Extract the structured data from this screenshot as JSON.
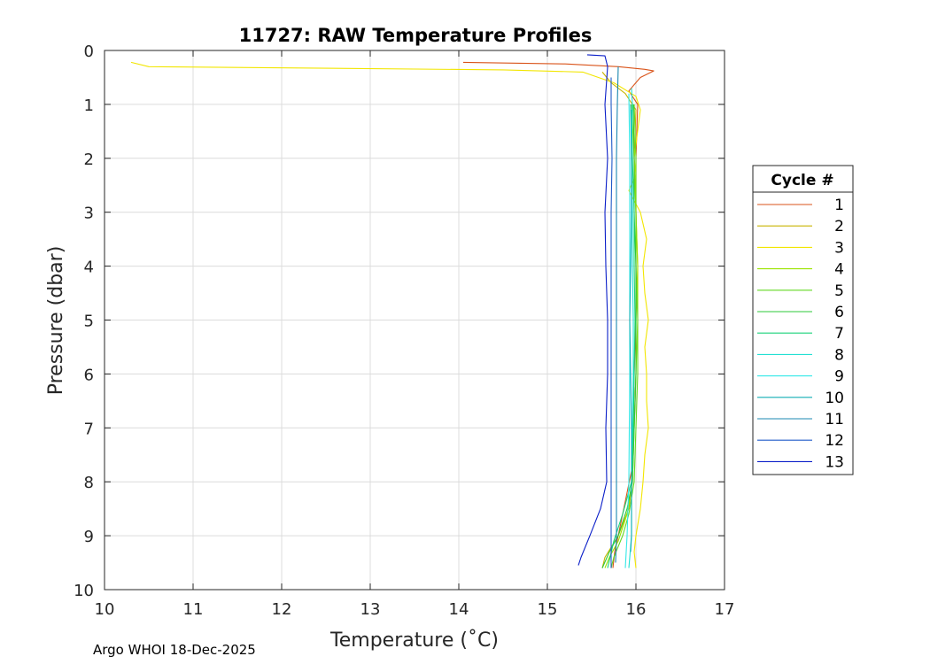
{
  "chart_data": {
    "type": "line",
    "title": "11727: RAW Temperature Profiles",
    "xlabel": "Temperature (˚C)",
    "ylabel": "Pressure (dbar)",
    "xlim": [
      10,
      17
    ],
    "ylim": [
      0,
      10
    ],
    "y_reversed": true,
    "grid": true,
    "xticks": [
      "10",
      "11",
      "12",
      "13",
      "14",
      "15",
      "16",
      "17"
    ],
    "yticks": [
      "0",
      "1",
      "2",
      "3",
      "4",
      "5",
      "6",
      "7",
      "8",
      "9",
      "10"
    ],
    "legend": {
      "title": "Cycle #",
      "placement": "right"
    },
    "series": [
      {
        "name": "1",
        "color": "#d95319",
        "points": [
          [
            14.05,
            0.22
          ],
          [
            15.2,
            0.25
          ],
          [
            15.8,
            0.3
          ],
          [
            16.1,
            0.35
          ],
          [
            16.2,
            0.38
          ],
          [
            16.05,
            0.5
          ],
          [
            15.92,
            0.75
          ],
          [
            16.02,
            1.0
          ],
          [
            16.0,
            2.0
          ],
          [
            16.0,
            3.0
          ],
          [
            16.0,
            4.0
          ],
          [
            16.0,
            5.0
          ],
          [
            15.98,
            6.0
          ],
          [
            15.97,
            7.0
          ],
          [
            15.95,
            7.8
          ],
          [
            15.9,
            8.2
          ],
          [
            15.85,
            8.6
          ],
          [
            15.8,
            9.0
          ],
          [
            15.76,
            9.3
          ],
          [
            15.74,
            9.6
          ]
        ]
      },
      {
        "name": "2",
        "color": "#c8b400",
        "points": [
          [
            15.62,
            0.4
          ],
          [
            15.72,
            0.6
          ],
          [
            15.88,
            0.8
          ],
          [
            16.0,
            1.1
          ],
          [
            15.98,
            2.0
          ],
          [
            16.0,
            3.0
          ],
          [
            16.02,
            4.0
          ],
          [
            16.0,
            5.0
          ],
          [
            16.0,
            6.0
          ],
          [
            15.98,
            7.0
          ],
          [
            15.96,
            8.0
          ],
          [
            15.92,
            8.5
          ],
          [
            15.8,
            9.0
          ],
          [
            15.65,
            9.4
          ],
          [
            15.62,
            9.6
          ]
        ]
      },
      {
        "name": "3",
        "color": "#f2e600",
        "points": [
          [
            10.3,
            0.22
          ],
          [
            10.5,
            0.3
          ],
          [
            12.5,
            0.33
          ],
          [
            14.5,
            0.36
          ],
          [
            15.4,
            0.4
          ],
          [
            15.75,
            0.6
          ],
          [
            16.0,
            0.85
          ],
          [
            16.05,
            1.1
          ],
          [
            15.98,
            2.0
          ],
          [
            16.0,
            2.3
          ],
          [
            15.92,
            2.6
          ],
          [
            16.05,
            3.0
          ],
          [
            16.12,
            3.5
          ],
          [
            16.08,
            4.0
          ],
          [
            16.1,
            4.5
          ],
          [
            16.14,
            5.0
          ],
          [
            16.1,
            5.5
          ],
          [
            16.12,
            6.0
          ],
          [
            16.12,
            6.5
          ],
          [
            16.14,
            7.0
          ],
          [
            16.1,
            7.5
          ],
          [
            16.08,
            8.0
          ],
          [
            16.05,
            8.5
          ],
          [
            16.0,
            9.0
          ],
          [
            15.98,
            9.3
          ],
          [
            16.0,
            9.6
          ]
        ]
      },
      {
        "name": "4",
        "color": "#9be400",
        "points": [
          [
            15.95,
            1.0
          ],
          [
            15.98,
            2.0
          ],
          [
            16.0,
            3.0
          ],
          [
            16.02,
            4.0
          ],
          [
            16.02,
            5.0
          ],
          [
            16.0,
            6.0
          ],
          [
            15.98,
            7.0
          ],
          [
            15.96,
            8.0
          ],
          [
            15.9,
            8.6
          ],
          [
            15.8,
            9.1
          ],
          [
            15.7,
            9.4
          ],
          [
            15.65,
            9.6
          ]
        ]
      },
      {
        "name": "5",
        "color": "#62d820",
        "points": [
          [
            15.98,
            1.0
          ],
          [
            16.0,
            2.0
          ],
          [
            16.0,
            3.0
          ],
          [
            16.0,
            4.0
          ],
          [
            16.02,
            5.0
          ],
          [
            16.02,
            6.0
          ],
          [
            16.0,
            7.0
          ],
          [
            15.98,
            8.0
          ],
          [
            15.92,
            8.6
          ],
          [
            15.85,
            9.0
          ],
          [
            15.75,
            9.4
          ],
          [
            15.72,
            9.6
          ]
        ]
      },
      {
        "name": "6",
        "color": "#2ec838",
        "points": [
          [
            15.97,
            1.0
          ],
          [
            15.98,
            2.0
          ],
          [
            15.98,
            3.0
          ],
          [
            16.0,
            4.0
          ],
          [
            16.0,
            5.0
          ],
          [
            16.0,
            6.0
          ],
          [
            15.98,
            7.0
          ],
          [
            15.96,
            8.0
          ],
          [
            15.9,
            8.5
          ],
          [
            15.8,
            9.0
          ],
          [
            15.7,
            9.3
          ],
          [
            15.62,
            9.6
          ]
        ]
      },
      {
        "name": "7",
        "color": "#19d27a",
        "points": [
          [
            15.95,
            1.1
          ],
          [
            15.96,
            2.0
          ],
          [
            15.98,
            3.0
          ],
          [
            15.98,
            4.0
          ],
          [
            15.99,
            5.0
          ],
          [
            15.98,
            6.0
          ],
          [
            15.97,
            7.0
          ],
          [
            15.95,
            8.0
          ],
          [
            15.85,
            8.6
          ],
          [
            15.75,
            9.1
          ],
          [
            15.68,
            9.6
          ]
        ]
      },
      {
        "name": "8",
        "color": "#22e0d2",
        "points": [
          [
            15.95,
            0.7
          ],
          [
            15.96,
            1.0
          ],
          [
            15.95,
            2.0
          ],
          [
            15.96,
            3.0
          ],
          [
            15.96,
            4.0
          ],
          [
            15.97,
            5.0
          ],
          [
            15.97,
            6.0
          ],
          [
            15.96,
            7.0
          ],
          [
            15.95,
            8.0
          ],
          [
            15.95,
            8.5
          ],
          [
            15.95,
            9.0
          ],
          [
            15.93,
            9.4
          ],
          [
            15.92,
            9.6
          ]
        ]
      },
      {
        "name": "9",
        "color": "#33e8e8",
        "points": [
          [
            15.92,
            0.8
          ],
          [
            15.93,
            2.0
          ],
          [
            15.93,
            4.0
          ],
          [
            15.93,
            6.0
          ],
          [
            15.92,
            8.0
          ],
          [
            15.9,
            9.0
          ],
          [
            15.88,
            9.6
          ]
        ]
      },
      {
        "name": "10",
        "color": "#12aeb4",
        "points": [
          [
            15.94,
            1.0
          ],
          [
            15.95,
            2.0
          ],
          [
            15.95,
            3.0
          ],
          [
            15.94,
            4.0
          ],
          [
            15.93,
            5.0
          ],
          [
            15.94,
            6.0
          ],
          [
            15.95,
            7.0
          ],
          [
            15.95,
            8.0
          ],
          [
            15.95,
            8.5
          ],
          [
            15.95,
            9.0
          ],
          [
            15.94,
            9.3
          ]
        ]
      },
      {
        "name": "11",
        "color": "#1b88b0",
        "points": [
          [
            15.8,
            0.3
          ],
          [
            15.79,
            1.0
          ],
          [
            15.78,
            2.0
          ],
          [
            15.78,
            3.0
          ],
          [
            15.78,
            4.0
          ],
          [
            15.78,
            5.0
          ],
          [
            15.78,
            6.0
          ],
          [
            15.78,
            7.0
          ],
          [
            15.78,
            8.0
          ],
          [
            15.78,
            9.0
          ],
          [
            15.77,
            9.5
          ]
        ]
      },
      {
        "name": "12",
        "color": "#1f5ac8",
        "points": [
          [
            15.72,
            0.5
          ],
          [
            15.72,
            1.0
          ],
          [
            15.73,
            2.0
          ],
          [
            15.72,
            3.0
          ],
          [
            15.72,
            4.0
          ],
          [
            15.72,
            5.0
          ],
          [
            15.72,
            6.0
          ],
          [
            15.72,
            7.0
          ],
          [
            15.72,
            8.0
          ],
          [
            15.72,
            9.0
          ],
          [
            15.72,
            9.6
          ]
        ]
      },
      {
        "name": "13",
        "color": "#0a1ec8",
        "points": [
          [
            15.45,
            0.08
          ],
          [
            15.65,
            0.1
          ],
          [
            15.68,
            0.3
          ],
          [
            15.65,
            1.0
          ],
          [
            15.68,
            2.0
          ],
          [
            15.65,
            3.0
          ],
          [
            15.66,
            4.0
          ],
          [
            15.68,
            5.0
          ],
          [
            15.68,
            6.0
          ],
          [
            15.66,
            7.0
          ],
          [
            15.67,
            8.0
          ],
          [
            15.6,
            8.5
          ],
          [
            15.48,
            9.0
          ],
          [
            15.38,
            9.4
          ],
          [
            15.35,
            9.55
          ]
        ]
      }
    ]
  },
  "footer": {
    "text": "Argo WHOI 18-Dec-2025"
  }
}
